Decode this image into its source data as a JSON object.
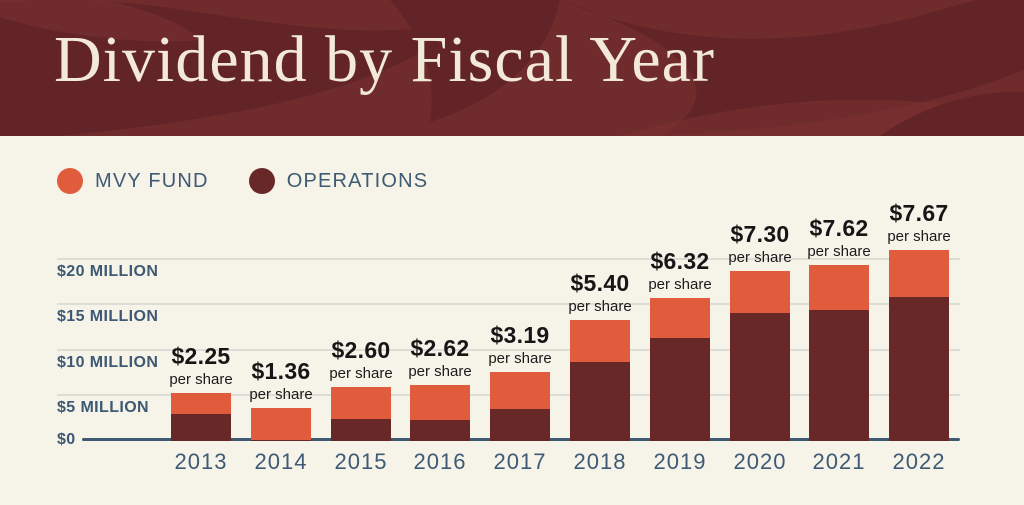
{
  "header": {
    "title": "Dividend by Fiscal Year"
  },
  "legend": {
    "items": [
      {
        "label": "MVY FUND",
        "color": "#E15C3C"
      },
      {
        "label": "OPERATIONS",
        "color": "#692828"
      }
    ]
  },
  "chart_data": {
    "type": "bar",
    "stacked": true,
    "title": "Dividend by Fiscal Year",
    "categories": [
      "2013",
      "2014",
      "2015",
      "2016",
      "2017",
      "2018",
      "2019",
      "2020",
      "2021",
      "2022"
    ],
    "series": [
      {
        "name": "OPERATIONS",
        "color": "#692828",
        "values_millions": [
          2.9,
          0,
          2.3,
          2.2,
          3.4,
          8.6,
          11.3,
          14.0,
          14.4,
          15.8
        ]
      },
      {
        "name": "MVY FUND",
        "color": "#E15C3C",
        "values_millions": [
          2.3,
          3.5,
          3.6,
          3.9,
          4.1,
          4.7,
          4.4,
          4.7,
          5.0,
          5.2
        ]
      }
    ],
    "totals_millions": [
      5.2,
      3.5,
      5.9,
      6.1,
      7.5,
      13.3,
      15.7,
      18.7,
      19.4,
      21.0
    ],
    "per_share_labels": [
      "$2.25",
      "$1.36",
      "$2.60",
      "$2.62",
      "$3.19",
      "$5.40",
      "$6.32",
      "$7.30",
      "$7.62",
      "$7.67"
    ],
    "per_share_suffix": "per share",
    "y_ticks": [
      {
        "value": 0,
        "label": "$0"
      },
      {
        "value": 5,
        "label": "$5 MILLION"
      },
      {
        "value": 10,
        "label": "$10 MILLION"
      },
      {
        "value": 15,
        "label": "$15 MILLION"
      },
      {
        "value": 20,
        "label": "$20 MILLION"
      }
    ],
    "ylim_millions": [
      0,
      22
    ],
    "grid": true,
    "legend_position": "top-left",
    "colors": {
      "background": "#F6F3E8",
      "header_background": "#702C2C",
      "header_pattern": "#632428",
      "title_text": "#F2E9DA",
      "axis_text": "#3E5A74",
      "axis_line": "#3E5971",
      "gridline": "#DCDED6",
      "value_label_text": "#161616"
    }
  }
}
